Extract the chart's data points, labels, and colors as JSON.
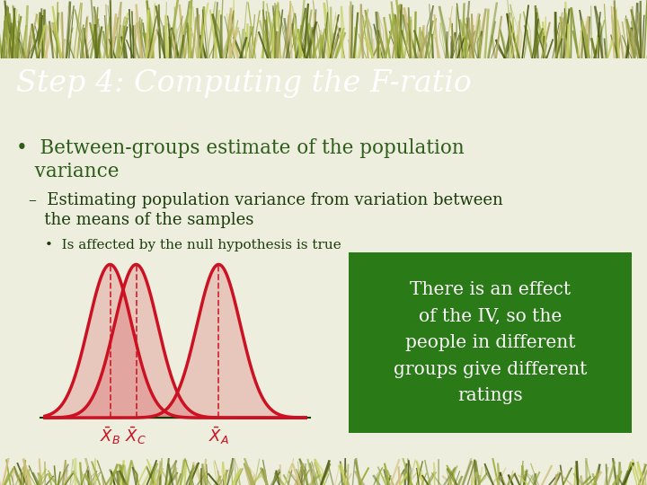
{
  "title": "Step 4: Computing the F-ratio",
  "title_bg_color": "#7a7a35",
  "title_text_color": "#ffffff",
  "slide_bg_color": "#edeede",
  "bullet1_line1": "•  Between-groups estimate of the population",
  "bullet1_line2": "   variance",
  "bullet1_color": "#2e5c1a",
  "sub_bullet1_line1": "–  Estimating population variance from variation between",
  "sub_bullet1_line2": "   the means of the samples",
  "sub_bullet1_color": "#1a3a0a",
  "sub_sub_bullet": "•  Is affected by the null hypothesis is true",
  "sub_sub_color": "#1a3a0a",
  "curve_color": "#cc1122",
  "baseline_color": "#1a3a0a",
  "dashed_color": "#cc1122",
  "label_color": "#cc1122",
  "box_bg_color": "#2a7a18",
  "box_text_color": "#ffffff",
  "box_text": "There is an effect\nof the IV, so the\npeople in different\ngroups give different\nratings",
  "means": [
    0.3,
    0.42,
    0.8
  ],
  "sigma": 0.1,
  "grass_colors": [
    "#8a9a3a",
    "#5a6a1a",
    "#a0b040",
    "#c8d060",
    "#9aaa40",
    "#d4c080",
    "#b0a860",
    "#6a7a20",
    "#4a5a10"
  ]
}
